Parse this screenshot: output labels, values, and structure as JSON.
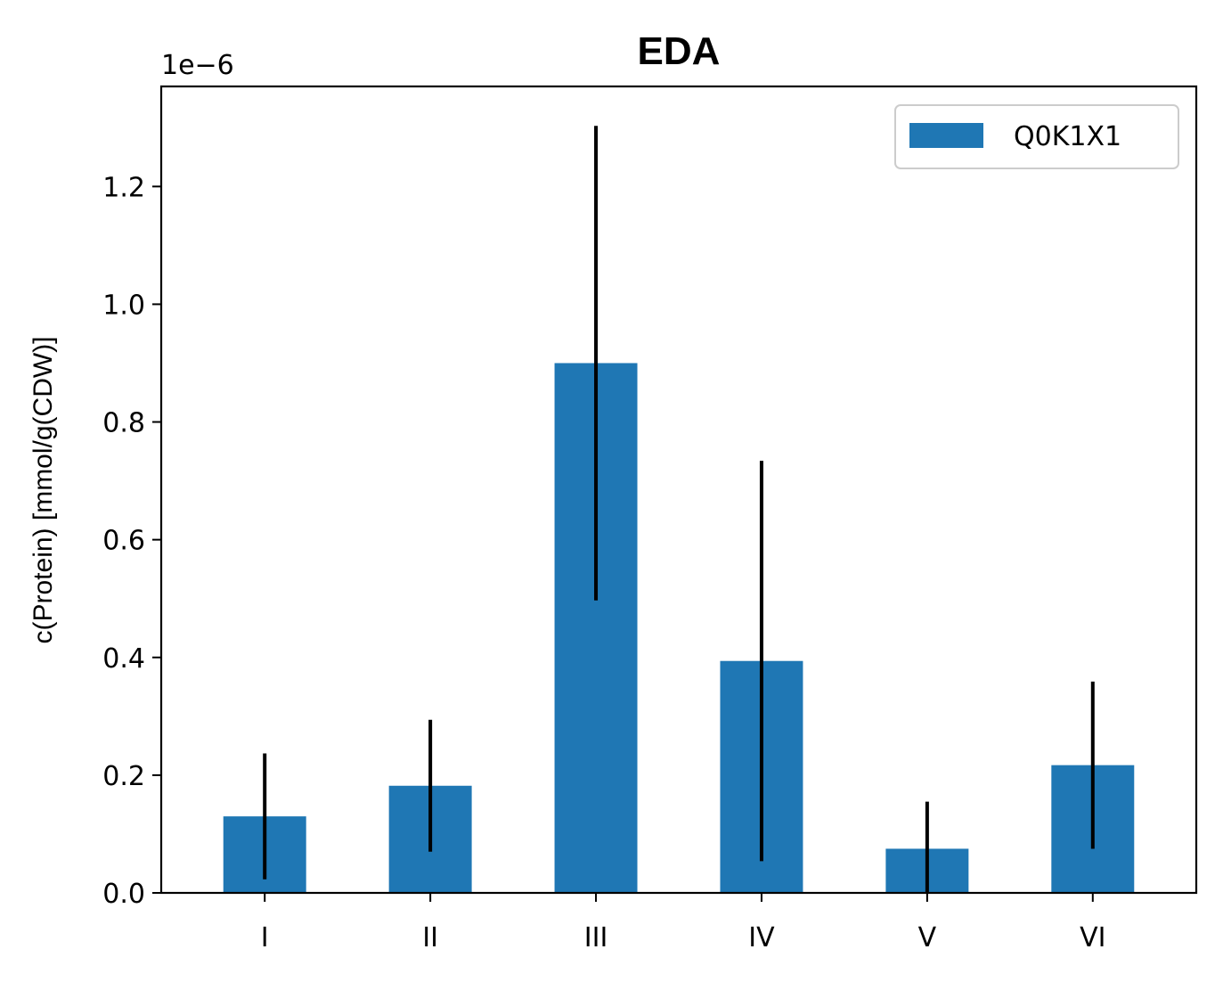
{
  "chart_data": {
    "type": "bar",
    "title": "EDA",
    "xlabel": "",
    "ylabel": "c(Protein) [mmol/g(CDW)]",
    "y_offset_label": "1e−6",
    "categories": [
      "I",
      "II",
      "III",
      "IV",
      "V",
      "VI"
    ],
    "series": [
      {
        "name": "Q0K1X1",
        "color": "#1f77b4",
        "values": [
          0.13,
          0.182,
          0.9,
          0.394,
          0.075,
          0.217
        ],
        "error": [
          0.107,
          0.112,
          0.403,
          0.34,
          0.08,
          0.142
        ]
      }
    ],
    "y_scale_factor": 1e-06,
    "ylim": [
      0,
      1.37
    ],
    "yticks": [
      0.0,
      0.2,
      0.4,
      0.6,
      0.8,
      1.0,
      1.2
    ],
    "ytick_labels": [
      "0.0",
      "0.2",
      "0.4",
      "0.6",
      "0.8",
      "1.0",
      "1.2"
    ],
    "error_bar_color": "#000000",
    "grid": false,
    "legend": {
      "position": "top-right"
    }
  }
}
